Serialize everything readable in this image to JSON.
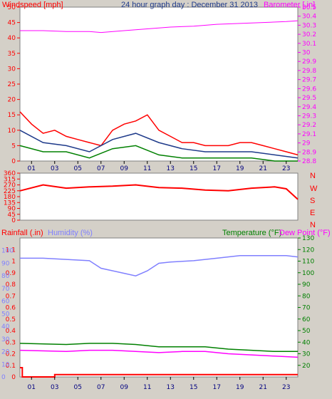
{
  "header": {
    "title": "24 hour graph day : December 31 2013",
    "left_label": "Windspeed [mph]",
    "right_label": "Barometer [.in]"
  },
  "direction": {
    "cardinals": [
      "N",
      "W",
      "S",
      "E",
      "N"
    ]
  },
  "bottom_header": {
    "left_label": "Rainfall (.in)",
    "humidity_label": "Humidity (%)",
    "temp_label": "Temperature (°F)",
    "dew_label": "Dew Point (°F)"
  },
  "colors": {
    "panel_bg": "#ffffff",
    "frame_bg": "#d4d0c8",
    "wind": "#ff0000",
    "wind_avg": "#1e3a8a",
    "gust_green": "#008000",
    "barometer": "#ff00ff",
    "direction": "#ff0000",
    "humidity": "#8080ff",
    "temperature": "#008000",
    "dewpoint": "#ff00ff",
    "rain": "#ff0000"
  },
  "chart_data": [
    {
      "type": "line",
      "panel": "wind",
      "x_ticks": [
        "01",
        "03",
        "05",
        "07",
        "09",
        "11",
        "13",
        "15",
        "17",
        "19",
        "21",
        "23"
      ],
      "y_left": {
        "min": 0,
        "max": 50,
        "ticks": [
          0,
          5,
          10,
          15,
          20,
          25,
          30,
          35,
          40,
          45,
          50
        ]
      },
      "y_right": {
        "min": 28.8,
        "max": 30.5,
        "ticks": [
          "28.8",
          "28.9",
          "29",
          "29.1",
          "29.2",
          "29.3",
          "29.4",
          "29.5",
          "29.6",
          "29.7",
          "29.8",
          "29.9",
          "30",
          "30.1",
          "30.2",
          "30.3",
          "30.4",
          "30.5"
        ]
      },
      "series": [
        {
          "name": "Windspeed",
          "color": "wind",
          "hours": [
            0,
            1,
            2,
            3,
            4,
            5,
            6,
            7,
            8,
            9,
            10,
            11,
            12,
            13,
            14,
            15,
            16,
            17,
            18,
            19,
            20,
            21,
            22,
            23,
            24
          ],
          "values": [
            16,
            12,
            9,
            10,
            8,
            7,
            6,
            5,
            10,
            12,
            13,
            15,
            10,
            8,
            6,
            6,
            5,
            5,
            5,
            6,
            6,
            5,
            4,
            3,
            2
          ]
        },
        {
          "name": "Average",
          "color": "wind_avg",
          "hours": [
            0,
            2,
            4,
            6,
            8,
            10,
            12,
            14,
            16,
            18,
            20,
            22,
            24
          ],
          "values": [
            10,
            6,
            5,
            3,
            7,
            9,
            6,
            4,
            3,
            3,
            3,
            2,
            1
          ]
        },
        {
          "name": "Gust",
          "color": "gust_green",
          "hours": [
            0,
            2,
            4,
            6,
            8,
            10,
            12,
            14,
            16,
            18,
            20,
            22,
            24
          ],
          "values": [
            5,
            3,
            3,
            1,
            4,
            5,
            2,
            1,
            1,
            1,
            1,
            0,
            0
          ]
        },
        {
          "name": "Barometer",
          "axis": "right",
          "color": "barometer",
          "hours": [
            0,
            2,
            4,
            6,
            7,
            9,
            11,
            13,
            15,
            17,
            19,
            21,
            23,
            24
          ],
          "values": [
            30.24,
            30.24,
            30.23,
            30.23,
            30.22,
            30.24,
            30.26,
            30.28,
            30.29,
            30.31,
            30.32,
            30.33,
            30.34,
            30.35
          ]
        }
      ]
    },
    {
      "type": "line",
      "panel": "direction",
      "y_left": {
        "min": 0,
        "max": 360,
        "ticks": [
          0,
          45,
          90,
          135,
          180,
          225,
          270,
          315,
          360
        ]
      },
      "series": [
        {
          "name": "Wind direction",
          "color": "direction",
          "hours": [
            0,
            2,
            4,
            6,
            8,
            10,
            12,
            14,
            16,
            18,
            20,
            22,
            23,
            24
          ],
          "values": [
            225,
            270,
            245,
            255,
            260,
            270,
            250,
            245,
            230,
            225,
            245,
            255,
            240,
            160
          ]
        }
      ]
    },
    {
      "type": "line",
      "panel": "temperature",
      "y_rain": {
        "min": 0,
        "max": 1.2,
        "ticks": [
          "0",
          "0.1",
          "0.2",
          "0.3",
          "0.4",
          "0.5",
          "0.6",
          "0.7",
          "0.8",
          "0.9",
          "1",
          "1.1"
        ]
      },
      "y_humidity": {
        "min": 0,
        "max": 110,
        "ticks": [
          0,
          10,
          20,
          30,
          40,
          50,
          60,
          70,
          80,
          90,
          100
        ]
      },
      "y_temp": {
        "min": 10,
        "max": 130,
        "ticks": [
          20,
          30,
          40,
          50,
          60,
          70,
          80,
          90,
          100,
          110,
          120,
          130
        ]
      },
      "series": [
        {
          "name": "Humidity",
          "axis": "humidity",
          "color": "humidity",
          "hours": [
            0,
            2,
            4,
            6,
            7,
            9,
            10,
            11,
            12,
            13,
            15,
            17,
            19,
            21,
            23,
            24
          ],
          "values": [
            94,
            94,
            93,
            92,
            86,
            82,
            80,
            84,
            90,
            91,
            92,
            94,
            96,
            96,
            96,
            95
          ]
        },
        {
          "name": "Temperature",
          "axis": "temp",
          "color": "temperature",
          "hours": [
            0,
            4,
            6,
            8,
            10,
            12,
            14,
            16,
            18,
            20,
            22,
            24
          ],
          "values": [
            39,
            38,
            39,
            39,
            38,
            36,
            36,
            36,
            34,
            33,
            32,
            32
          ]
        },
        {
          "name": "Dew Point",
          "axis": "temp",
          "color": "dewpoint",
          "hours": [
            0,
            4,
            6,
            8,
            10,
            12,
            14,
            16,
            18,
            20,
            22,
            24
          ],
          "values": [
            33,
            32,
            33,
            33,
            32,
            31,
            32,
            32,
            30,
            29,
            28,
            27
          ]
        },
        {
          "name": "Rainfall",
          "axis": "rain",
          "color": "rain",
          "hours": [
            0,
            0.2,
            0.2,
            3,
            3,
            24
          ],
          "values": [
            0.08,
            0.08,
            0.0,
            0.0,
            0.02,
            0.02
          ]
        }
      ]
    }
  ]
}
